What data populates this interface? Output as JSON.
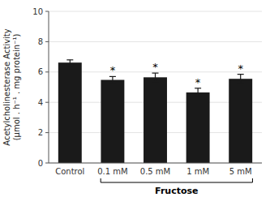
{
  "chart_data": {
    "type": "bar",
    "categories": [
      "Control",
      "0.1 mM",
      "0.5 mM",
      "1 mM",
      "5 mM"
    ],
    "values": [
      6.62,
      5.48,
      5.65,
      4.65,
      5.55
    ],
    "errors": [
      0.18,
      0.22,
      0.28,
      0.28,
      0.3
    ],
    "color": "#1a1a1a",
    "ylabel": "Acetylcholinesterase Activity\n(μmol . h⁻¹ . mg protein⁻¹)",
    "xlabel": "Fructose",
    "ylim": [
      0,
      10
    ],
    "yticks": [
      0,
      2,
      4,
      6,
      8,
      10
    ],
    "annotations": [
      {
        "text": "*",
        "category": "0.1 mM"
      },
      {
        "text": "*",
        "category": "0.5 mM"
      },
      {
        "text": "*",
        "category": "1 mM"
      },
      {
        "text": "*",
        "category": "5 mM"
      }
    ]
  }
}
